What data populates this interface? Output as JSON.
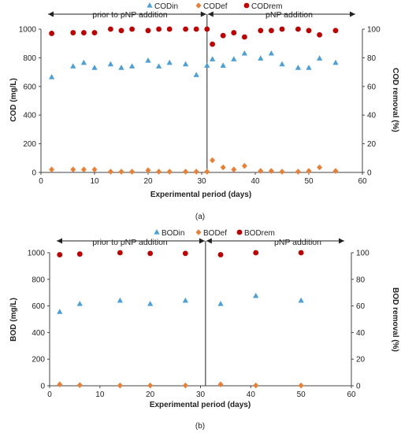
{
  "panels": [
    {
      "panel_label": "(a)",
      "phase_labels": [
        "prior to pNP addition",
        "pNP addition"
      ],
      "legend": [
        "CODin",
        "CODef",
        "CODrem"
      ]
    },
    {
      "panel_label": "(b)",
      "phase_labels": [
        "prior to pNP addition",
        "pNP addition"
      ],
      "legend": [
        "BODin",
        "BODef",
        "BODrem"
      ]
    }
  ],
  "colors": {
    "influent": "#4aa0d8",
    "effluent": "#ed7d31",
    "removal": "#c00000",
    "axis": "#444444"
  },
  "chart_data": [
    {
      "type": "scatter",
      "title": "",
      "xlabel": "Experimental period (days)",
      "ylabel": "COD (mg/L)",
      "y2label": "COD removal (%)",
      "xlim": [
        0,
        60
      ],
      "ylim": [
        0,
        1000
      ],
      "y2lim": [
        0,
        100
      ],
      "x_ticks": [
        0,
        10,
        20,
        30,
        40,
        50,
        60
      ],
      "y_ticks": [
        0,
        200,
        400,
        600,
        800,
        1000
      ],
      "y2_ticks": [
        0,
        20,
        40,
        60,
        80,
        100
      ],
      "phase_divider_x": 31,
      "legend_position": "top-center",
      "grid": false,
      "series": [
        {
          "name": "CODin",
          "axis": "left",
          "marker": "triangle",
          "x": [
            2,
            6,
            8,
            10,
            13,
            15,
            17,
            20,
            22,
            24,
            27,
            29,
            31,
            32,
            34,
            36,
            38,
            41,
            43,
            45,
            48,
            50,
            52,
            55
          ],
          "y": [
            665,
            740,
            765,
            730,
            755,
            730,
            740,
            780,
            740,
            765,
            755,
            680,
            745,
            790,
            745,
            790,
            830,
            795,
            830,
            755,
            730,
            730,
            795,
            765
          ]
        },
        {
          "name": "CODef",
          "axis": "left",
          "marker": "diamond",
          "x": [
            2,
            6,
            8,
            10,
            13,
            15,
            17,
            20,
            22,
            24,
            27,
            29,
            31,
            32,
            34,
            36,
            38,
            41,
            43,
            45,
            48,
            50,
            52,
            55
          ],
          "y": [
            20,
            20,
            20,
            20,
            5,
            5,
            5,
            15,
            5,
            5,
            5,
            5,
            5,
            85,
            35,
            20,
            45,
            10,
            10,
            5,
            5,
            10,
            35,
            10
          ]
        },
        {
          "name": "CODrem",
          "axis": "right",
          "marker": "circle",
          "x": [
            2,
            6,
            8,
            10,
            13,
            15,
            17,
            20,
            22,
            24,
            27,
            29,
            31,
            32,
            34,
            36,
            38,
            41,
            43,
            45,
            48,
            50,
            52,
            55
          ],
          "y": [
            97,
            97.5,
            97.5,
            97.5,
            100,
            99,
            100,
            99,
            100,
            100,
            100,
            100,
            100,
            89.5,
            95.5,
            97.5,
            94.5,
            99,
            99,
            100,
            100,
            99,
            96,
            99
          ]
        }
      ]
    },
    {
      "type": "scatter",
      "title": "",
      "xlabel": "Experimental period (days)",
      "ylabel": "BOD (mg/L)",
      "y2label": "BOD removal (%)",
      "xlim": [
        0,
        60
      ],
      "ylim": [
        0,
        1000
      ],
      "y2lim": [
        0,
        100
      ],
      "x_ticks": [
        0,
        10,
        20,
        30,
        40,
        50,
        60
      ],
      "y_ticks": [
        0,
        200,
        400,
        600,
        800,
        1000
      ],
      "y2_ticks": [
        0,
        20,
        40,
        60,
        80,
        100
      ],
      "phase_divider_x": 31,
      "legend_position": "top-center",
      "grid": false,
      "series": [
        {
          "name": "BODin",
          "axis": "left",
          "marker": "triangle",
          "x": [
            2,
            6,
            14,
            20,
            27,
            34,
            41,
            50
          ],
          "y": [
            555,
            615,
            640,
            615,
            640,
            615,
            675,
            640
          ]
        },
        {
          "name": "BODef",
          "axis": "left",
          "marker": "diamond",
          "x": [
            2,
            6,
            14,
            20,
            27,
            34,
            41,
            50
          ],
          "y": [
            10,
            5,
            2,
            2,
            2,
            10,
            2,
            2
          ]
        },
        {
          "name": "BODrem",
          "axis": "right",
          "marker": "circle",
          "x": [
            2,
            6,
            14,
            20,
            27,
            34,
            41,
            50
          ],
          "y": [
            98.5,
            99,
            100,
            99.5,
            99.5,
            98.5,
            100,
            100
          ]
        }
      ]
    }
  ]
}
